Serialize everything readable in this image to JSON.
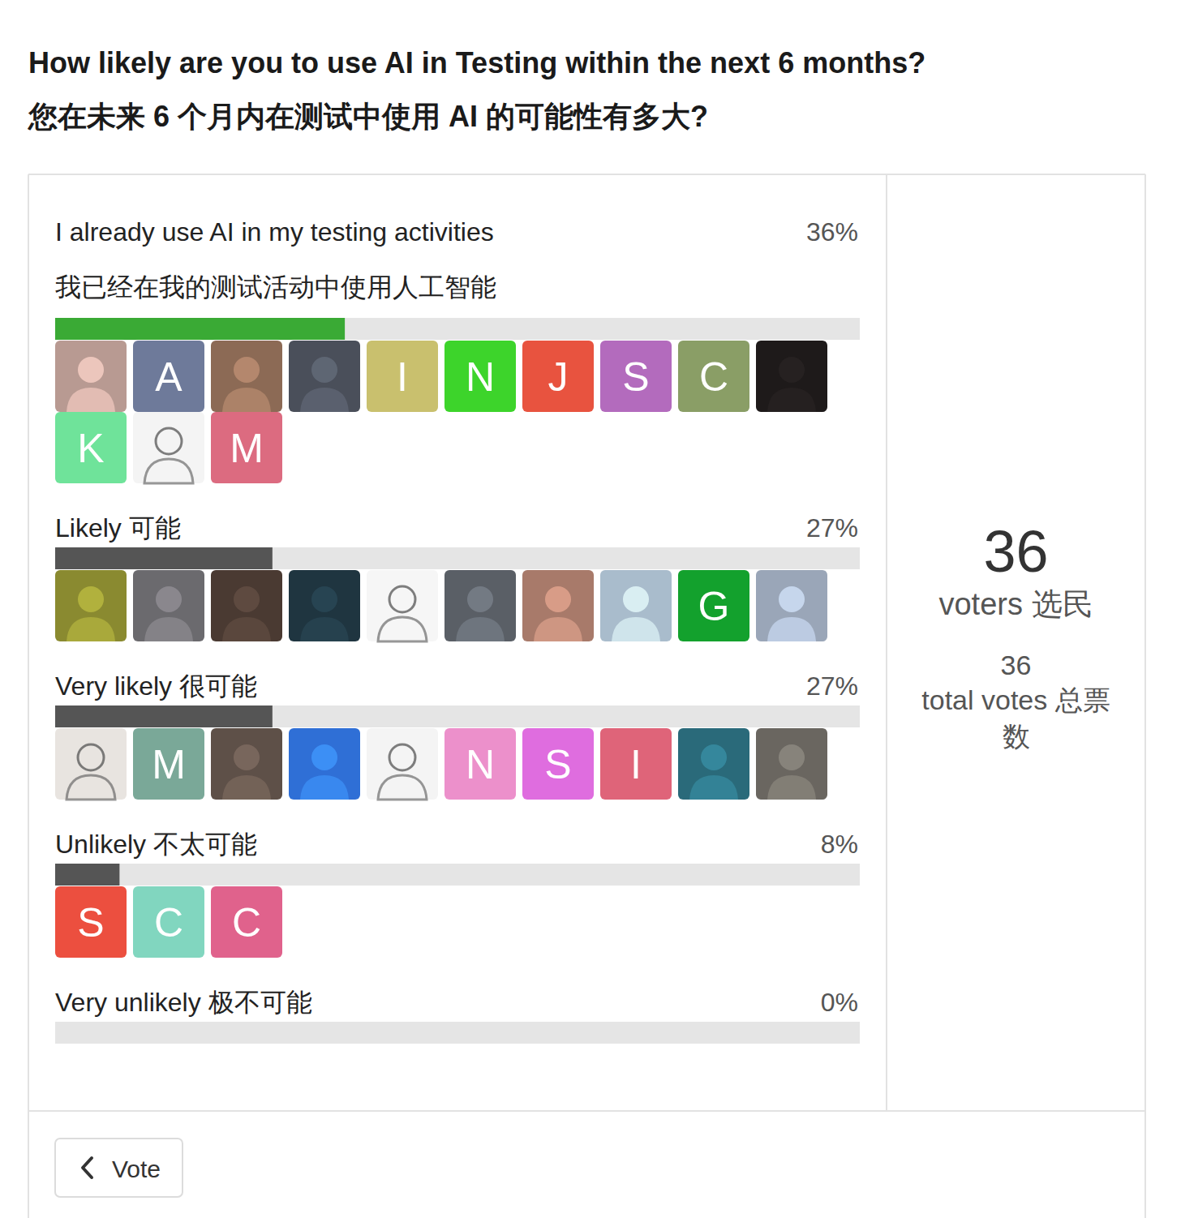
{
  "chart_data": {
    "type": "bar",
    "orientation": "horizontal",
    "title": "How likely are you to use AI in Testing within the next 6 months?\n您在未来 6 个月内在测试中使用 AI 的可能性有多大?",
    "categories": [
      "I already use AI in my testing activities\n我已经在我的测试活动中使用人工智能",
      "Likely 可能",
      "Very likely 很可能",
      "Unlikely 不太可能",
      "Very unlikely 极不可能"
    ],
    "values": [
      36,
      27,
      27,
      8,
      0
    ],
    "value_labels": [
      "36%",
      "27%",
      "27%",
      "8%",
      "0%"
    ],
    "colors": [
      "#3aaa35",
      "#555555",
      "#555555",
      "#555555",
      "#555555"
    ],
    "xlim": [
      0,
      100
    ],
    "data_labels": true,
    "tick_labels": false,
    "grid": false
  },
  "poll": {
    "voters": 36,
    "voters_label": "voters 选民",
    "total_votes": 36,
    "total_votes_label": "total votes 总票数",
    "button": "Vote",
    "avatars": [
      [
        {
          "color": "#b89a92"
        },
        {
          "label": "A",
          "color": "#6e7a9a"
        },
        {
          "color": "#8c6a55"
        },
        {
          "color": "#4a4f5a"
        },
        {
          "label": "I",
          "color": "#c9c06e"
        },
        {
          "label": "N",
          "color": "#3dd42b"
        },
        {
          "label": "J",
          "color": "#e8533f"
        },
        {
          "label": "S",
          "color": "#b36bbd"
        },
        {
          "label": "C",
          "color": "#8a9e66"
        },
        {
          "color": "#1e1a1a"
        },
        {
          "label": "K",
          "color": "#6fe39a"
        },
        {
          "color": "#f4f4f4"
        },
        {
          "label": "M",
          "color": "#dc6b80"
        }
      ],
      [
        {
          "color": "#8a8a30"
        },
        {
          "color": "#6b6a6e"
        },
        {
          "color": "#4a3a32"
        },
        {
          "color": "#1f3540"
        },
        {
          "color": "#f6f6f6"
        },
        {
          "color": "#5a5f66"
        },
        {
          "color": "#a87a6a"
        },
        {
          "color": "#a9bccc"
        },
        {
          "label": "G",
          "color": "#13a12d"
        },
        {
          "color": "#9aa6b8"
        }
      ],
      [
        {
          "color": "#e8e4e0"
        },
        {
          "label": "M",
          "color": "#7aa898"
        },
        {
          "color": "#5e5048"
        },
        {
          "color": "#2f6fd6"
        },
        {
          "color": "#f4f4f4"
        },
        {
          "label": "N",
          "color": "#ec90cb"
        },
        {
          "label": "S",
          "color": "#df6ddf"
        },
        {
          "label": "I",
          "color": "#df6479"
        },
        {
          "color": "#2a6a7a"
        },
        {
          "color": "#6a6660"
        }
      ],
      [
        {
          "label": "S",
          "color": "#ec4f3f"
        },
        {
          "label": "C",
          "color": "#81d6bf"
        },
        {
          "label": "C",
          "color": "#e0628c"
        }
      ]
    ]
  }
}
